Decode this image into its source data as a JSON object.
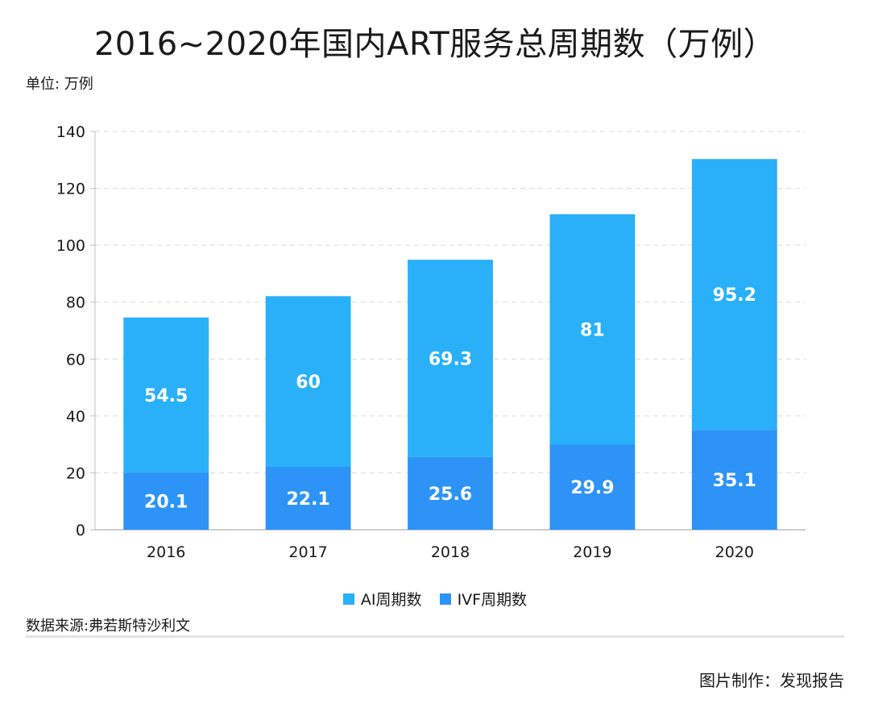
{
  "title": "2016~2020年国内ART服务总周期数（万例）",
  "unit_label": "单位: 万例",
  "source": "数据来源:弗若斯特沙利文",
  "credit": "图片制作：发现报告",
  "colors": {
    "ai": "#29B0F9",
    "ivf": "#2D93F7",
    "grid": "#d9d9d9",
    "axis": "#bfbfbf"
  },
  "chart_data": {
    "type": "bar",
    "stacked": true,
    "categories": [
      "2016",
      "2017",
      "2018",
      "2019",
      "2020"
    ],
    "series": [
      {
        "name": "IVF周期数",
        "values": [
          20.1,
          22.1,
          25.6,
          29.9,
          35.1
        ]
      },
      {
        "name": "AI周期数",
        "values": [
          54.5,
          60,
          69.3,
          81,
          95.2
        ]
      }
    ],
    "yticks": [
      0,
      20,
      40,
      60,
      80,
      100,
      120,
      140
    ],
    "ylim": [
      0,
      140
    ],
    "grid": true,
    "legend": "bottom-center"
  },
  "legend": [
    {
      "label": "AI周期数",
      "color_key": "ai"
    },
    {
      "label": "IVF周期数",
      "color_key": "ivf"
    }
  ]
}
